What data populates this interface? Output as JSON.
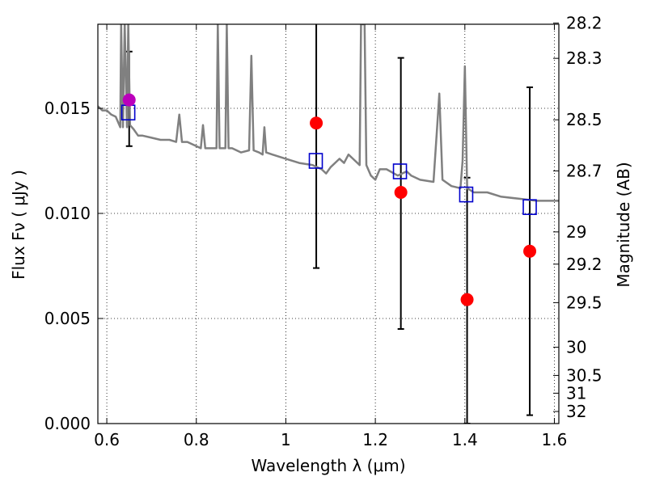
{
  "chart_data": {
    "type": "scatter",
    "xlabel": "Wavelength  λ (μm)",
    "ylabel": "Flux  Fν  ( μJy )",
    "ylabel_right": "Magnitude (AB)",
    "xlim": [
      0.58,
      1.61
    ],
    "ylim": [
      0.0,
      0.019
    ],
    "grid": true,
    "x_ticks": [
      {
        "value": 0.6,
        "label": "0.6"
      },
      {
        "value": 0.8,
        "label": "0.8"
      },
      {
        "value": 1.0,
        "label": "1"
      },
      {
        "value": 1.2,
        "label": "1.2"
      },
      {
        "value": 1.4,
        "label": "1.4"
      },
      {
        "value": 1.6,
        "label": "1.6"
      }
    ],
    "y_ticks": [
      {
        "value": 0.0,
        "label": "0.000"
      },
      {
        "value": 0.005,
        "label": "0.005"
      },
      {
        "value": 0.01,
        "label": "0.010"
      },
      {
        "value": 0.015,
        "label": "0.015"
      }
    ],
    "mag_ticks": [
      {
        "mag": 28.2,
        "label": "28.2"
      },
      {
        "mag": 28.3,
        "label": "28.3"
      },
      {
        "mag": 28.5,
        "label": "28.5"
      },
      {
        "mag": 28.7,
        "label": "28.7"
      },
      {
        "mag": 29.0,
        "label": "29"
      },
      {
        "mag": 29.2,
        "label": "29.2"
      },
      {
        "mag": 29.5,
        "label": "29.5"
      },
      {
        "mag": 30.0,
        "label": "30"
      },
      {
        "mag": 30.5,
        "label": "30.5"
      },
      {
        "mag": 31.0,
        "label": "31"
      },
      {
        "mag": 32.0,
        "label": "32"
      }
    ],
    "series": [
      {
        "type": "line",
        "color": "#808080",
        "points": [
          [
            0.58,
            0.0151
          ],
          [
            0.59,
            0.0149
          ],
          [
            0.6,
            0.0149
          ],
          [
            0.61,
            0.0147
          ],
          [
            0.62,
            0.0146
          ],
          [
            0.63,
            0.0141
          ],
          [
            0.632,
            0.019
          ],
          [
            0.636,
            0.0141
          ],
          [
            0.64,
            0.019
          ],
          [
            0.645,
            0.0141
          ],
          [
            0.648,
            0.019
          ],
          [
            0.652,
            0.0142
          ],
          [
            0.66,
            0.014
          ],
          [
            0.67,
            0.0137
          ],
          [
            0.68,
            0.0137
          ],
          [
            0.7,
            0.0136
          ],
          [
            0.72,
            0.0135
          ],
          [
            0.74,
            0.0135
          ],
          [
            0.755,
            0.0134
          ],
          [
            0.762,
            0.0147
          ],
          [
            0.768,
            0.0134
          ],
          [
            0.78,
            0.0134
          ],
          [
            0.8,
            0.0132
          ],
          [
            0.81,
            0.0131
          ],
          [
            0.815,
            0.0142
          ],
          [
            0.82,
            0.0131
          ],
          [
            0.835,
            0.0131
          ],
          [
            0.845,
            0.0131
          ],
          [
            0.848,
            0.019
          ],
          [
            0.852,
            0.0131
          ],
          [
            0.865,
            0.0131
          ],
          [
            0.868,
            0.019
          ],
          [
            0.872,
            0.0131
          ],
          [
            0.88,
            0.0131
          ],
          [
            0.9,
            0.0129
          ],
          [
            0.918,
            0.013
          ],
          [
            0.923,
            0.0175
          ],
          [
            0.928,
            0.013
          ],
          [
            0.94,
            0.0129
          ],
          [
            0.948,
            0.0128
          ],
          [
            0.952,
            0.0141
          ],
          [
            0.956,
            0.0129
          ],
          [
            0.97,
            0.0128
          ],
          [
            1.0,
            0.0126
          ],
          [
            1.03,
            0.0124
          ],
          [
            1.06,
            0.0123
          ],
          [
            1.08,
            0.0121
          ],
          [
            1.09,
            0.0119
          ],
          [
            1.1,
            0.0122
          ],
          [
            1.12,
            0.0126
          ],
          [
            1.13,
            0.0124
          ],
          [
            1.14,
            0.0128
          ],
          [
            1.155,
            0.0125
          ],
          [
            1.165,
            0.0123
          ],
          [
            1.168,
            0.019
          ],
          [
            1.176,
            0.019
          ],
          [
            1.18,
            0.0123
          ],
          [
            1.19,
            0.0118
          ],
          [
            1.2,
            0.0116
          ],
          [
            1.21,
            0.0121
          ],
          [
            1.225,
            0.0121
          ],
          [
            1.25,
            0.0118
          ],
          [
            1.27,
            0.012
          ],
          [
            1.28,
            0.0118
          ],
          [
            1.3,
            0.0116
          ],
          [
            1.33,
            0.0115
          ],
          [
            1.338,
            0.0141
          ],
          [
            1.343,
            0.0157
          ],
          [
            1.35,
            0.0116
          ],
          [
            1.37,
            0.0113
          ],
          [
            1.39,
            0.0112
          ],
          [
            1.395,
            0.0125
          ],
          [
            1.4,
            0.017
          ],
          [
            1.405,
            0.0112
          ],
          [
            1.42,
            0.011
          ],
          [
            1.45,
            0.011
          ],
          [
            1.48,
            0.0108
          ],
          [
            1.52,
            0.0107
          ],
          [
            1.56,
            0.0106
          ],
          [
            1.61,
            0.0106
          ]
        ]
      },
      {
        "type": "scatter",
        "marker": "open-square",
        "color": "#0000cc",
        "points": [
          [
            0.648,
            0.0148
          ],
          [
            1.067,
            0.0125
          ],
          [
            1.255,
            0.012
          ],
          [
            1.403,
            0.0109
          ],
          [
            1.545,
            0.0103
          ]
        ]
      },
      {
        "type": "scatter",
        "marker": "filled-circle",
        "color": "#ff0000",
        "points": [
          [
            1.068,
            0.0143
          ],
          [
            1.257,
            0.011
          ],
          [
            1.405,
            0.0059
          ],
          [
            1.545,
            0.0082
          ]
        ]
      },
      {
        "type": "scatter",
        "marker": "filled-circle",
        "color": "#bb00bb",
        "points": [
          [
            0.65,
            0.0154
          ]
        ]
      }
    ],
    "error_bars": [
      {
        "x": 0.65,
        "low": 0.0132,
        "high": 0.0177
      },
      {
        "x": 1.068,
        "low": 0.0074,
        "high": 0.0196
      },
      {
        "x": 1.257,
        "low": 0.0045,
        "high": 0.0174
      },
      {
        "x": 1.405,
        "low": 0.0,
        "high": 0.0117
      },
      {
        "x": 1.545,
        "low": 0.0004,
        "high": 0.016
      }
    ]
  }
}
